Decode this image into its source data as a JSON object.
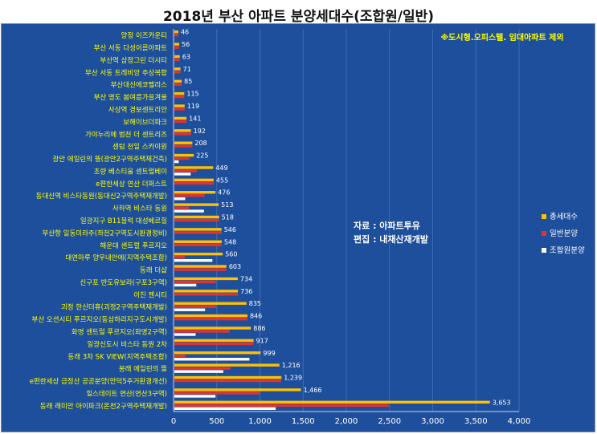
{
  "chart_data": {
    "type": "bar",
    "orientation": "horizontal",
    "title": "2018년 부산 아파트 분양세대수(조합원/일반)",
    "note": "※도시형.오피스텔. 임대아파트 제외",
    "source_lines": [
      "자료 : 아파트투유",
      "편집 : 내재산재개발"
    ],
    "xlim": [
      0,
      4000
    ],
    "xticks": [
      0,
      500,
      1000,
      1500,
      2000,
      2500,
      3000,
      3500,
      4000
    ],
    "xtick_labels": [
      "0",
      "500",
      "1,000",
      "1,500",
      "2,000",
      "2,500",
      "3,000",
      "3,500",
      "4,000"
    ],
    "legend_position": "right",
    "categories": [
      "양정 이즈카운티",
      "부산 서동 다성이름아파트",
      "부산역 삼정그린 더시티",
      "부산 서동 트레비앙 주상복합",
      "부산대신에코펠리스",
      "부산 영도 봄여름가을겨울",
      "사상역 경보센트리안",
      "보해이브더파크",
      "가야누리에 범천 더 센트리즈",
      "센텀 천일 스카이원",
      "광안 에일린의 뜰(광안2구역주택재건축)",
      "초량 베스티움 센트럴베이",
      "e편한세상 연산 더퍼스트",
      "동대신역 비스타동원(동대신2구역주택재개발)",
      "사하역 비스타 동원",
      "일광지구 B11블럭 대성베르힐",
      "부산항 일동미라주(좌천2구역도시환경정비)",
      "해운대 센트럴 푸르지오",
      "대연마루 양우내안에(지역주택조합)",
      "동래 더샵",
      "신구포 반도유보라(구포3구역)",
      "이진 젠시티",
      "괴정 한신더휴(괴정2구역주택재개발)",
      "부산 오션시티 푸르지오(동삼하리지구도시개발)",
      "화명 센트럴 푸르지오(화명2구역)",
      "일광신도시 비스타 동원 2차",
      "동래 3차 SK VIEW(지역주택조합)",
      "봉래 에일린의 뜰",
      "e편한세상 금정산 공공분양(만덕5주거환경개선)",
      "힐스테이트 연산(연산3구역)",
      "동래 래미안 아이파크(온천2구역주택재개발)"
    ],
    "series": [
      {
        "name": "총세대수",
        "color": "#ffc000",
        "values": [
          46,
          56,
          63,
          71,
          85,
          115,
          119,
          141,
          192,
          208,
          225,
          449,
          455,
          476,
          513,
          518,
          546,
          548,
          560,
          603,
          734,
          736,
          835,
          846,
          886,
          917,
          999,
          1216,
          1239,
          1466,
          3653
        ]
      },
      {
        "name": "일반분양",
        "color": "#e0342f",
        "values": [
          46,
          56,
          63,
          71,
          85,
          115,
          119,
          141,
          192,
          208,
          175,
          260,
          455,
          350,
          170,
          518,
          546,
          548,
          120,
          603,
          480,
          736,
          480,
          846,
          640,
          917,
          130,
          650,
          1239,
          990,
          2480
        ]
      },
      {
        "name": "조합원분양",
        "color": "#ffffff",
        "values": [
          0,
          0,
          0,
          0,
          0,
          0,
          0,
          0,
          0,
          0,
          50,
          189,
          0,
          126,
          343,
          0,
          0,
          0,
          440,
          0,
          254,
          0,
          355,
          0,
          246,
          0,
          869,
          566,
          0,
          476,
          1173
        ]
      }
    ]
  }
}
